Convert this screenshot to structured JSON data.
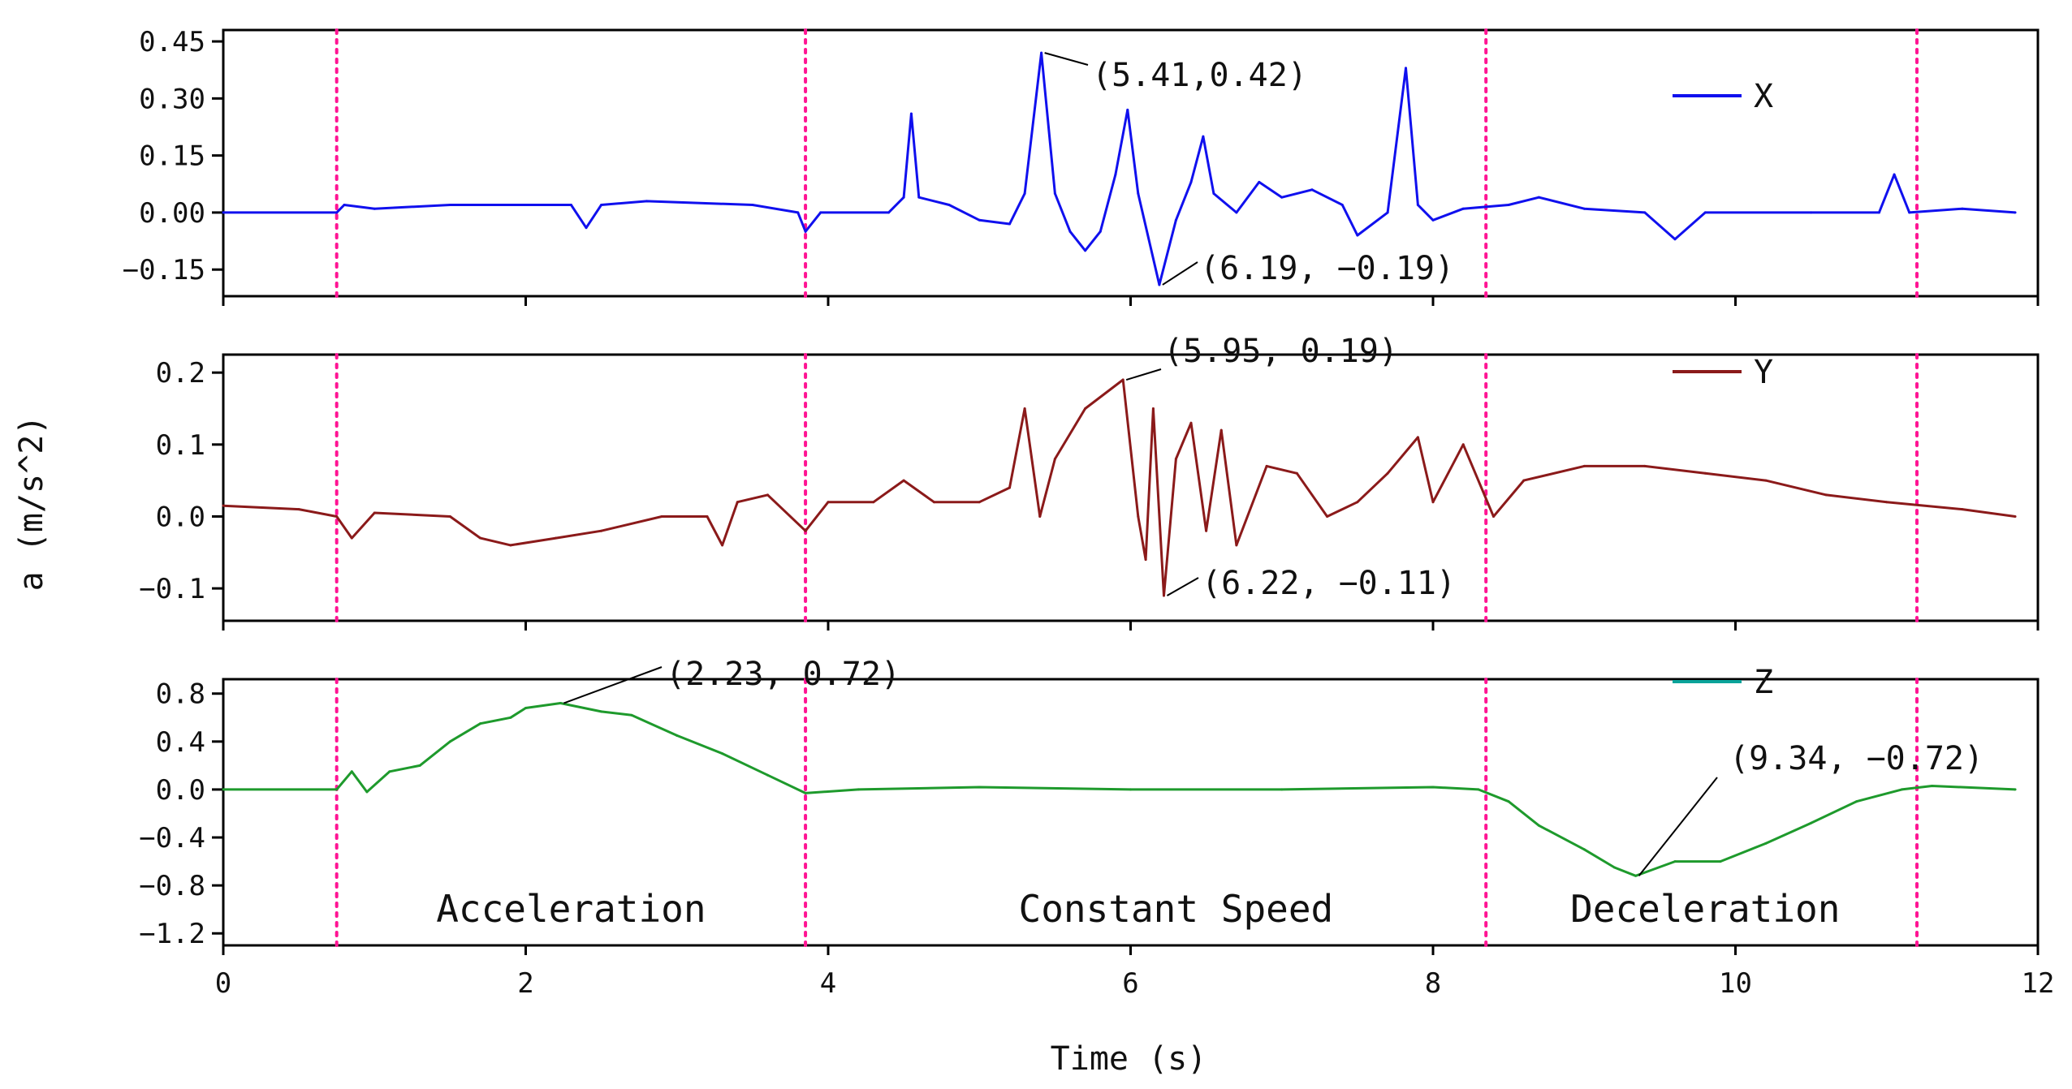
{
  "chart_data": {
    "type": "line",
    "xlabel": "Time (s)",
    "ylabel": "a (m/s^2)",
    "xlim": [
      0,
      12
    ],
    "x_ticks": [
      "0",
      "2",
      "4",
      "6",
      "8",
      "10",
      "12"
    ],
    "phase_boundaries": [
      0.75,
      3.85,
      8.35,
      11.2
    ],
    "phase_labels": [
      {
        "text": "Acceleration",
        "x_center": 2.3
      },
      {
        "text": "Constant Speed",
        "x_center": 6.3
      },
      {
        "text": "Deceleration",
        "x_center": 9.8
      }
    ],
    "colors": {
      "X": "#1010ee",
      "Y": "#8b1a1a",
      "Z": "#1e9a2c",
      "Z_legend": "#0aa39a",
      "phase_line": "#ff1493"
    },
    "panels": [
      {
        "series": "X",
        "ylim": [
          -0.22,
          0.48
        ],
        "y_ticks": [
          0.45,
          0.3,
          0.15,
          0.0,
          -0.15
        ],
        "y_tick_labels": [
          "0.45",
          "0.30",
          "0.15",
          "0.00",
          "−0.15"
        ],
        "points": [
          [
            0,
            0
          ],
          [
            0.75,
            0
          ],
          [
            0.8,
            0.02
          ],
          [
            1.0,
            0.01
          ],
          [
            1.5,
            0.02
          ],
          [
            2.0,
            0.02
          ],
          [
            2.3,
            0.02
          ],
          [
            2.4,
            -0.04
          ],
          [
            2.5,
            0.02
          ],
          [
            2.8,
            0.03
          ],
          [
            3.5,
            0.02
          ],
          [
            3.8,
            0.0
          ],
          [
            3.85,
            -0.05
          ],
          [
            3.95,
            0.0
          ],
          [
            4.4,
            0.0
          ],
          [
            4.5,
            0.04
          ],
          [
            4.55,
            0.26
          ],
          [
            4.6,
            0.04
          ],
          [
            4.8,
            0.02
          ],
          [
            5.0,
            -0.02
          ],
          [
            5.2,
            -0.03
          ],
          [
            5.3,
            0.05
          ],
          [
            5.41,
            0.42
          ],
          [
            5.5,
            0.05
          ],
          [
            5.6,
            -0.05
          ],
          [
            5.7,
            -0.1
          ],
          [
            5.8,
            -0.05
          ],
          [
            5.9,
            0.1
          ],
          [
            5.98,
            0.27
          ],
          [
            6.05,
            0.05
          ],
          [
            6.19,
            -0.19
          ],
          [
            6.3,
            -0.02
          ],
          [
            6.4,
            0.08
          ],
          [
            6.48,
            0.2
          ],
          [
            6.55,
            0.05
          ],
          [
            6.7,
            0.0
          ],
          [
            6.85,
            0.08
          ],
          [
            7.0,
            0.04
          ],
          [
            7.2,
            0.06
          ],
          [
            7.4,
            0.02
          ],
          [
            7.5,
            -0.06
          ],
          [
            7.7,
            0.0
          ],
          [
            7.82,
            0.38
          ],
          [
            7.9,
            0.02
          ],
          [
            8.0,
            -0.02
          ],
          [
            8.2,
            0.01
          ],
          [
            8.5,
            0.02
          ],
          [
            8.7,
            0.04
          ],
          [
            9.0,
            0.01
          ],
          [
            9.4,
            0.0
          ],
          [
            9.6,
            -0.07
          ],
          [
            9.8,
            0.0
          ],
          [
            10.5,
            0.0
          ],
          [
            10.95,
            0.0
          ],
          [
            11.05,
            0.1
          ],
          [
            11.15,
            0.0
          ],
          [
            11.5,
            0.01
          ],
          [
            11.85,
            0.0
          ]
        ],
        "annotations": [
          {
            "text": "(5.41,0.42)",
            "x": 5.41,
            "y": 0.42
          },
          {
            "text": "(6.19, −0.19)",
            "x": 6.19,
            "y": -0.19
          }
        ]
      },
      {
        "series": "Y",
        "ylim": [
          -0.145,
          0.225
        ],
        "y_ticks": [
          0.2,
          0.1,
          0.0,
          -0.1
        ],
        "y_tick_labels": [
          "0.2",
          "0.1",
          "0.0",
          "−0.1"
        ],
        "points": [
          [
            0,
            0.015
          ],
          [
            0.5,
            0.01
          ],
          [
            0.75,
            0.0
          ],
          [
            0.85,
            -0.03
          ],
          [
            1.0,
            0.005
          ],
          [
            1.5,
            0.0
          ],
          [
            1.7,
            -0.03
          ],
          [
            1.9,
            -0.04
          ],
          [
            2.2,
            -0.03
          ],
          [
            2.5,
            -0.02
          ],
          [
            2.9,
            0.0
          ],
          [
            3.2,
            0.0
          ],
          [
            3.3,
            -0.04
          ],
          [
            3.4,
            0.02
          ],
          [
            3.6,
            0.03
          ],
          [
            3.85,
            -0.02
          ],
          [
            4.0,
            0.02
          ],
          [
            4.3,
            0.02
          ],
          [
            4.5,
            0.05
          ],
          [
            4.7,
            0.02
          ],
          [
            5.0,
            0.02
          ],
          [
            5.2,
            0.04
          ],
          [
            5.3,
            0.15
          ],
          [
            5.4,
            0.0
          ],
          [
            5.5,
            0.08
          ],
          [
            5.7,
            0.15
          ],
          [
            5.95,
            0.19
          ],
          [
            6.05,
            0.0
          ],
          [
            6.1,
            -0.06
          ],
          [
            6.15,
            0.15
          ],
          [
            6.22,
            -0.11
          ],
          [
            6.3,
            0.08
          ],
          [
            6.4,
            0.13
          ],
          [
            6.5,
            -0.02
          ],
          [
            6.6,
            0.12
          ],
          [
            6.7,
            -0.04
          ],
          [
            6.9,
            0.07
          ],
          [
            7.1,
            0.06
          ],
          [
            7.3,
            0.0
          ],
          [
            7.5,
            0.02
          ],
          [
            7.7,
            0.06
          ],
          [
            7.9,
            0.11
          ],
          [
            8.0,
            0.02
          ],
          [
            8.2,
            0.1
          ],
          [
            8.4,
            0.0
          ],
          [
            8.6,
            0.05
          ],
          [
            9.0,
            0.07
          ],
          [
            9.4,
            0.07
          ],
          [
            9.8,
            0.06
          ],
          [
            10.2,
            0.05
          ],
          [
            10.6,
            0.03
          ],
          [
            11.0,
            0.02
          ],
          [
            11.5,
            0.01
          ],
          [
            11.85,
            0.0
          ]
        ],
        "annotations": [
          {
            "text": "(5.95, 0.19)",
            "x": 5.95,
            "y": 0.19
          },
          {
            "text": "(6.22, −0.11)",
            "x": 6.22,
            "y": -0.11
          }
        ]
      },
      {
        "series": "Z",
        "ylim": [
          -1.3,
          0.92
        ],
        "y_ticks": [
          0.8,
          0.4,
          0.0,
          -0.4,
          -0.8,
          -1.2
        ],
        "y_tick_labels": [
          "0.8",
          "0.4",
          "0.0",
          "−0.4",
          "−0.8",
          "−1.2"
        ],
        "points": [
          [
            0,
            0.0
          ],
          [
            0.75,
            0.0
          ],
          [
            0.85,
            0.15
          ],
          [
            0.95,
            -0.02
          ],
          [
            1.1,
            0.15
          ],
          [
            1.3,
            0.2
          ],
          [
            1.5,
            0.4
          ],
          [
            1.7,
            0.55
          ],
          [
            1.9,
            0.6
          ],
          [
            2.0,
            0.68
          ],
          [
            2.23,
            0.72
          ],
          [
            2.5,
            0.65
          ],
          [
            2.7,
            0.62
          ],
          [
            3.0,
            0.45
          ],
          [
            3.3,
            0.3
          ],
          [
            3.6,
            0.12
          ],
          [
            3.85,
            -0.03
          ],
          [
            4.2,
            0.0
          ],
          [
            5.0,
            0.02
          ],
          [
            6.0,
            0.0
          ],
          [
            7.0,
            0.0
          ],
          [
            8.0,
            0.02
          ],
          [
            8.3,
            0.0
          ],
          [
            8.5,
            -0.1
          ],
          [
            8.7,
            -0.3
          ],
          [
            9.0,
            -0.5
          ],
          [
            9.2,
            -0.65
          ],
          [
            9.34,
            -0.72
          ],
          [
            9.6,
            -0.6
          ],
          [
            9.9,
            -0.6
          ],
          [
            10.2,
            -0.45
          ],
          [
            10.5,
            -0.28
          ],
          [
            10.8,
            -0.1
          ],
          [
            11.1,
            0.0
          ],
          [
            11.3,
            0.03
          ],
          [
            11.85,
            0.0
          ]
        ],
        "annotations": [
          {
            "text": "(2.23, 0.72)",
            "x": 2.23,
            "y": 0.72
          },
          {
            "text": "(9.34, −0.72)",
            "x": 9.34,
            "y": -0.72
          }
        ]
      }
    ]
  }
}
